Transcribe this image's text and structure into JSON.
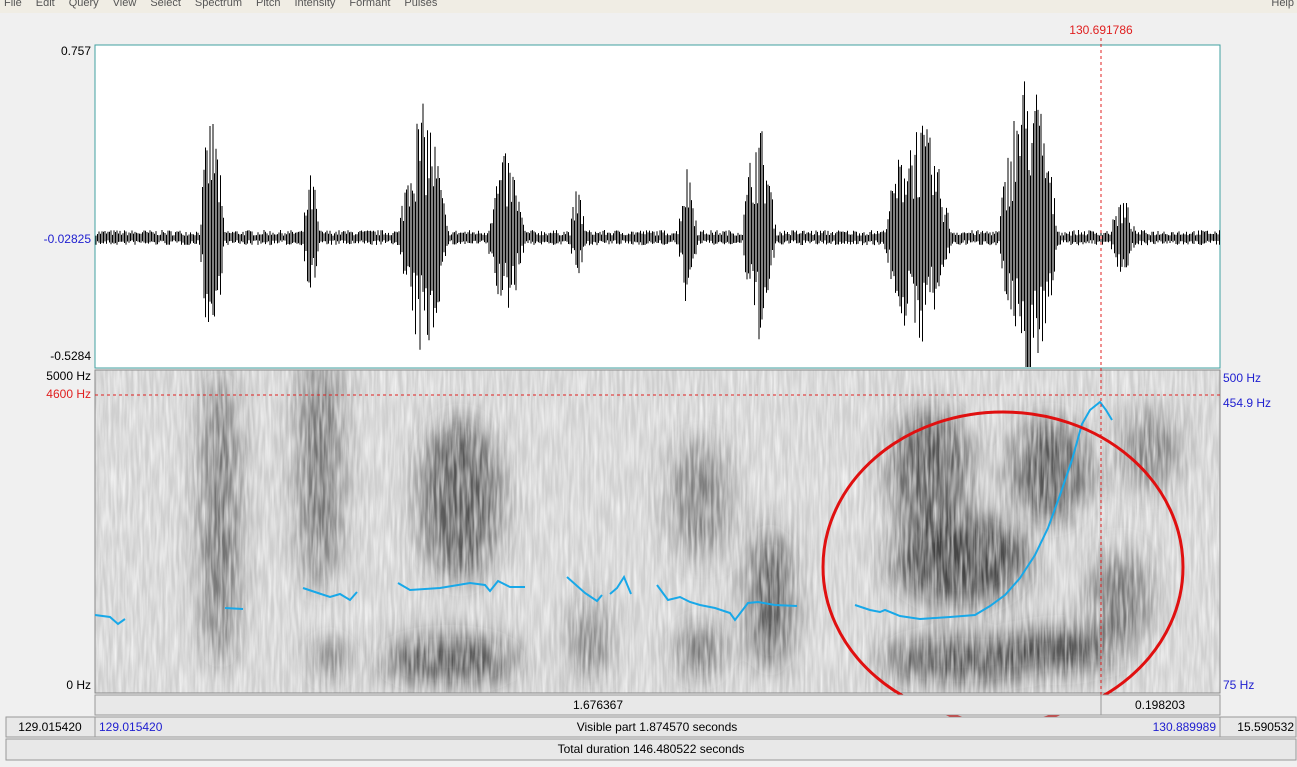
{
  "menu": [
    "File",
    "Edit",
    "Query",
    "View",
    "Select",
    "Spectrum",
    "Pitch",
    "Intensity",
    "Formant",
    "Pulses",
    "Help"
  ],
  "cursor_time": "130.691786",
  "waveform": {
    "max_label": "0.757",
    "mid_label": "-0.02825",
    "min_label": "-0.5284"
  },
  "spectrogram": {
    "top_label": "5000 Hz",
    "cursor_label": "4600 Hz",
    "bottom_label": "0 Hz"
  },
  "pitch": {
    "top_label": "500 Hz",
    "cursor_label": "454.9 Hz",
    "bottom_label": "75 Hz"
  },
  "selection_bar": {
    "left": "1.676367",
    "right": "0.198203"
  },
  "visible_bar": {
    "outer_left": "129.015420",
    "start": "129.015420",
    "center": "Visible part 1.874570 seconds",
    "end": "130.889989",
    "outer_right": "15.590532"
  },
  "total_bar": {
    "label": "Total duration 146.480522 seconds"
  }
}
